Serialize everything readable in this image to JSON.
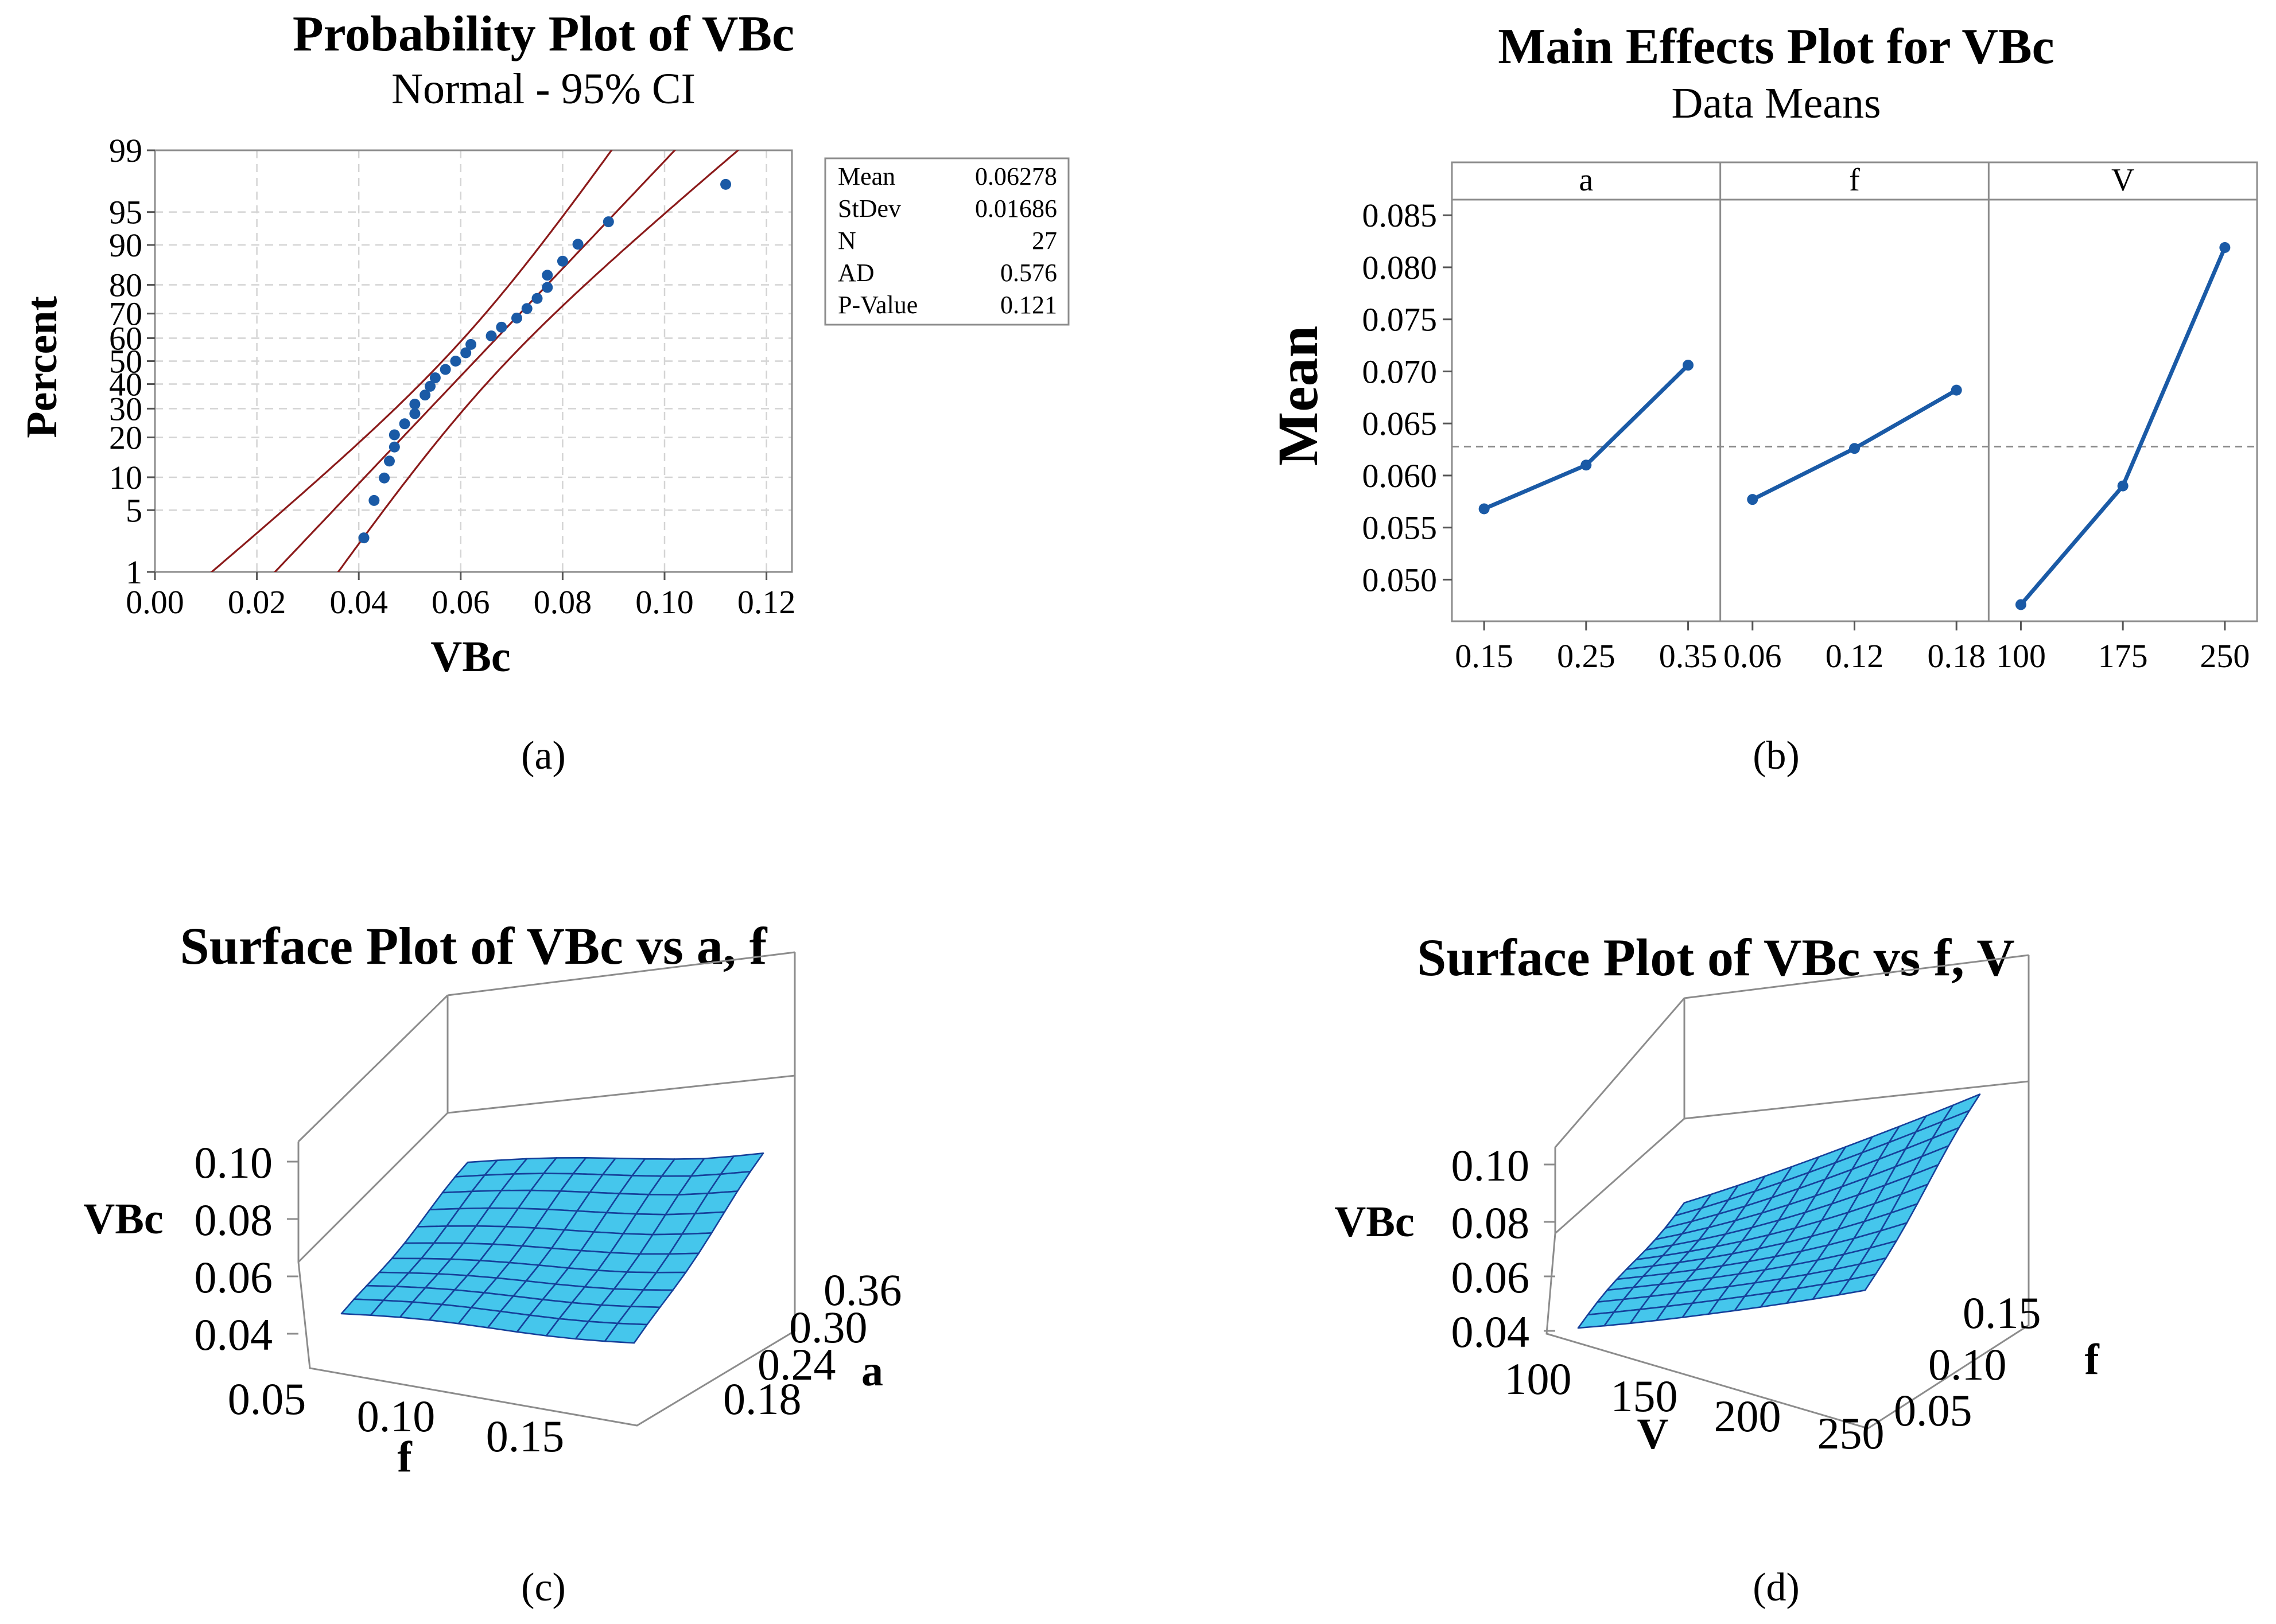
{
  "colors": {
    "line": "#1a5aa6",
    "ci": "#8b1a1a",
    "surface": "#45c6ec",
    "mesh": "#16409a",
    "grid": "#d4d4d4",
    "frame": "#8c8c8c"
  },
  "chart_data": [
    {
      "id": "a",
      "type": "scatter",
      "caption": "(a)",
      "title": "Probability Plot of VBc",
      "subtitle": "Normal - 95% CI",
      "xlabel": "VBc",
      "ylabel": "Percent",
      "xlim": [
        0.0,
        0.125
      ],
      "ylim_percent": [
        1,
        99
      ],
      "x_ticks": [
        "0.00",
        "0.02",
        "0.04",
        "0.06",
        "0.08",
        "0.10",
        "0.12"
      ],
      "y_ticks": [
        "1",
        "5",
        "10",
        "20",
        "30",
        "40",
        "50",
        "60",
        "70",
        "80",
        "90",
        "95",
        "99"
      ],
      "grid": true,
      "stats": [
        {
          "label": "Mean",
          "value": "0.06278"
        },
        {
          "label": "StDev",
          "value": "0.01686"
        },
        {
          "label": "N",
          "value": "27"
        },
        {
          "label": "AD",
          "value": "0.576"
        },
        {
          "label": "P-Value",
          "value": "0.121"
        }
      ],
      "mean": 0.06278,
      "stdev": 0.01686,
      "n": 27,
      "ci_level": 0.95,
      "points_x": [
        0.041,
        0.043,
        0.045,
        0.046,
        0.047,
        0.047,
        0.049,
        0.051,
        0.051,
        0.053,
        0.054,
        0.055,
        0.057,
        0.059,
        0.061,
        0.062,
        0.066,
        0.068,
        0.071,
        0.073,
        0.075,
        0.077,
        0.077,
        0.08,
        0.083,
        0.089,
        0.112
      ]
    },
    {
      "id": "b",
      "type": "line",
      "caption": "(b)",
      "title": "Main Effects Plot for VBc",
      "subtitle": "Data Means",
      "ylabel": "Mean",
      "ylim": [
        0.046,
        0.0865
      ],
      "y_ticks": [
        "0.050",
        "0.055",
        "0.060",
        "0.065",
        "0.070",
        "0.075",
        "0.080",
        "0.085"
      ],
      "overall_mean": 0.06278,
      "panels": [
        {
          "factor": "a",
          "levels": [
            "0.15",
            "0.25",
            "0.35"
          ],
          "means": [
            0.0568,
            0.061,
            0.0706
          ]
        },
        {
          "factor": "f",
          "levels": [
            "0.06",
            "0.12",
            "0.18"
          ],
          "means": [
            0.0577,
            0.0626,
            0.0682
          ]
        },
        {
          "factor": "V",
          "levels": [
            "100",
            "175",
            "250"
          ],
          "means": [
            0.0476,
            0.059,
            0.0819
          ]
        }
      ]
    },
    {
      "id": "c",
      "type": "surface",
      "caption": "(c)",
      "title": "Surface Plot of VBc vs a, f",
      "xlabel": "f",
      "ylabel": "a",
      "zlabel": "VBc",
      "x_range": [
        0.05,
        0.18
      ],
      "y_range": [
        0.15,
        0.36
      ],
      "z_range": [
        0.03,
        0.11
      ],
      "x_ticks": [
        "0.05",
        "0.10",
        "0.15"
      ],
      "y_ticks": [
        "0.18",
        "0.24",
        "0.30",
        "0.36"
      ],
      "z_ticks": [
        "0.04",
        "0.06",
        "0.08",
        "0.10"
      ]
    },
    {
      "id": "d",
      "type": "surface",
      "caption": "(d)",
      "title": "Surface Plot of VBc vs f, V",
      "xlabel": "V",
      "ylabel": "f",
      "zlabel": "VBc",
      "x_range": [
        100,
        260
      ],
      "y_range": [
        0.05,
        0.18
      ],
      "z_range": [
        0.03,
        0.11
      ],
      "x_ticks": [
        "100",
        "150",
        "200",
        "250"
      ],
      "y_ticks": [
        "0.05",
        "0.10",
        "0.15"
      ],
      "z_ticks": [
        "0.04",
        "0.06",
        "0.08",
        "0.10"
      ]
    }
  ]
}
